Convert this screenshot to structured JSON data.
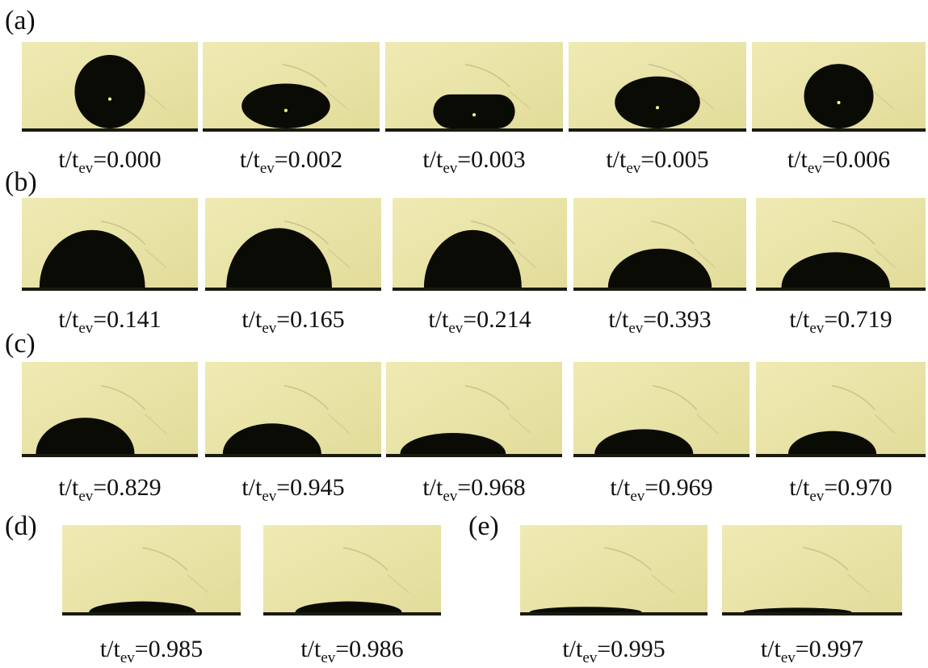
{
  "panels": [
    {
      "label": "(a)",
      "frames": [
        {
          "base": "t/t",
          "sub": "ev",
          "rest": "=0.000"
        },
        {
          "base": "t/t",
          "sub": "ev",
          "rest": "=0.002"
        },
        {
          "base": "t/t",
          "sub": "ev",
          "rest": "=0.003"
        },
        {
          "base": "t/t",
          "sub": "ev",
          "rest": "=0.005"
        },
        {
          "base": "t/t",
          "sub": "ev",
          "rest": "=0.006"
        }
      ]
    },
    {
      "label": "(b)",
      "frames": [
        {
          "base": "t/t",
          "sub": "ev",
          "rest": "=0.141"
        },
        {
          "base": "t/t",
          "sub": "ev",
          "rest": "=0.165"
        },
        {
          "base": "t/t",
          "sub": "ev",
          "rest": "=0.214"
        },
        {
          "base": "t/t",
          "sub": "ev",
          "rest": "=0.393"
        },
        {
          "base": "t/t",
          "sub": "ev",
          "rest": "=0.719"
        }
      ]
    },
    {
      "label": "(c)",
      "frames": [
        {
          "base": "t/t",
          "sub": "ev",
          "rest": "=0.829"
        },
        {
          "base": "t/t",
          "sub": "ev",
          "rest": "=0.945"
        },
        {
          "base": "t/t",
          "sub": "ev",
          "rest": "=0.968"
        },
        {
          "base": "t/t",
          "sub": "ev",
          "rest": "=0.969"
        },
        {
          "base": "t/t",
          "sub": "ev",
          "rest": "=0.970"
        }
      ]
    },
    {
      "label": "(d)",
      "frames": [
        {
          "base": "t/t",
          "sub": "ev",
          "rest": "=0.985"
        },
        {
          "base": "t/t",
          "sub": "ev",
          "rest": "=0.986"
        }
      ]
    },
    {
      "label": "(e)",
      "frames": [
        {
          "base": "t/t",
          "sub": "ev",
          "rest": "=0.995"
        },
        {
          "base": "t/t",
          "sub": "ev",
          "rest": "=0.997"
        }
      ]
    }
  ]
}
